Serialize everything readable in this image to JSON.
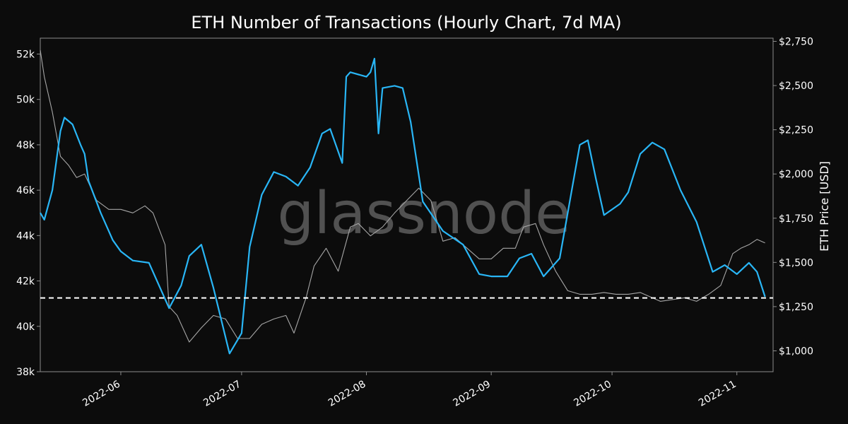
{
  "chart_data": {
    "type": "line",
    "title": "ETH Number of Transactions (Hourly Chart, 7d MA)",
    "watermark": "glassnode",
    "ylabel_right": "ETH Price [USD]",
    "x_range": [
      "2022-05-12",
      "2022-11-10"
    ],
    "x_ticks": [
      "2022-06",
      "2022-07",
      "2022-08",
      "2022-09",
      "2022-10",
      "2022-11"
    ],
    "x_tick_dates": [
      "2022-06-01",
      "2022-07-01",
      "2022-08-01",
      "2022-09-01",
      "2022-10-01",
      "2022-11-01"
    ],
    "y_left": {
      "ylim": [
        38000,
        52700
      ],
      "ticks": [
        38000,
        40000,
        42000,
        44000,
        46000,
        48000,
        50000,
        52000
      ],
      "tick_labels": [
        "38k",
        "40k",
        "42k",
        "44k",
        "46k",
        "48k",
        "50k",
        "52k"
      ]
    },
    "y_right": {
      "ylim": [
        882,
        2768
      ],
      "ticks": [
        1000,
        1250,
        1500,
        1750,
        2000,
        2250,
        2500,
        2750
      ],
      "tick_labels": [
        "$1,000",
        "$1,250",
        "$1,500",
        "$1,750",
        "$2,000",
        "$2,250",
        "$2,500",
        "$2,750"
      ]
    },
    "reference_line": {
      "axis": "left",
      "value": 41250,
      "style": "dashed",
      "color": "#ffffff"
    },
    "grid": false,
    "series": [
      {
        "axis": "left",
        "color": "#29b6f6",
        "x": [
          "2022-05-12",
          "2022-05-13",
          "2022-05-15",
          "2022-05-17",
          "2022-05-18",
          "2022-05-20",
          "2022-05-22",
          "2022-05-23",
          "2022-05-24",
          "2022-05-27",
          "2022-05-30",
          "2022-06-01",
          "2022-06-04",
          "2022-06-08",
          "2022-06-13",
          "2022-06-16",
          "2022-06-18",
          "2022-06-21",
          "2022-06-24",
          "2022-06-28",
          "2022-07-01",
          "2022-07-03",
          "2022-07-06",
          "2022-07-09",
          "2022-07-12",
          "2022-07-15",
          "2022-07-18",
          "2022-07-21",
          "2022-07-23",
          "2022-07-26",
          "2022-07-27",
          "2022-07-28",
          "2022-08-01",
          "2022-08-02",
          "2022-08-03",
          "2022-08-04",
          "2022-08-05",
          "2022-08-08",
          "2022-08-10",
          "2022-08-12",
          "2022-08-15",
          "2022-08-20",
          "2022-08-25",
          "2022-08-29",
          "2022-09-01",
          "2022-09-05",
          "2022-09-08",
          "2022-09-11",
          "2022-09-14",
          "2022-09-18",
          "2022-09-23",
          "2022-09-25",
          "2022-09-27",
          "2022-09-29",
          "2022-10-03",
          "2022-10-05",
          "2022-10-08",
          "2022-10-11",
          "2022-10-14",
          "2022-10-18",
          "2022-10-22",
          "2022-10-26",
          "2022-10-29",
          "2022-11-01",
          "2022-11-04",
          "2022-11-06",
          "2022-11-08"
        ],
        "values": [
          45000,
          44700,
          46000,
          48600,
          49200,
          48900,
          48000,
          47600,
          46400,
          45000,
          43800,
          43300,
          42900,
          42800,
          40800,
          41800,
          43100,
          43600,
          41700,
          38800,
          39700,
          43500,
          45800,
          46800,
          46600,
          46200,
          47000,
          48500,
          48700,
          47200,
          51000,
          51200,
          51000,
          51200,
          51800,
          48500,
          50500,
          50600,
          50500,
          49000,
          45500,
          44200,
          43600,
          42300,
          42200,
          42200,
          43000,
          43200,
          42200,
          43000,
          48000,
          48200,
          46500,
          44900,
          45400,
          45900,
          47600,
          48100,
          47800,
          46000,
          44600,
          42400,
          42700,
          42300,
          42800,
          42400,
          41300
        ]
      },
      {
        "axis": "right",
        "color": "#a6a6a6",
        "x": [
          "2022-05-12",
          "2022-05-13",
          "2022-05-15",
          "2022-05-17",
          "2022-05-19",
          "2022-05-21",
          "2022-05-23",
          "2022-05-26",
          "2022-05-29",
          "2022-06-01",
          "2022-06-04",
          "2022-06-07",
          "2022-06-09",
          "2022-06-12",
          "2022-06-13",
          "2022-06-15",
          "2022-06-18",
          "2022-06-21",
          "2022-06-24",
          "2022-06-27",
          "2022-06-30",
          "2022-07-03",
          "2022-07-06",
          "2022-07-09",
          "2022-07-12",
          "2022-07-14",
          "2022-07-17",
          "2022-07-19",
          "2022-07-22",
          "2022-07-25",
          "2022-07-28",
          "2022-07-30",
          "2022-08-02",
          "2022-08-05",
          "2022-08-08",
          "2022-08-11",
          "2022-08-14",
          "2022-08-17",
          "2022-08-20",
          "2022-08-23",
          "2022-08-26",
          "2022-08-29",
          "2022-09-01",
          "2022-09-04",
          "2022-09-07",
          "2022-09-09",
          "2022-09-12",
          "2022-09-14",
          "2022-09-17",
          "2022-09-20",
          "2022-09-23",
          "2022-09-26",
          "2022-09-29",
          "2022-10-02",
          "2022-10-05",
          "2022-10-08",
          "2022-10-11",
          "2022-10-13",
          "2022-10-16",
          "2022-10-19",
          "2022-10-22",
          "2022-10-25",
          "2022-10-28",
          "2022-10-31",
          "2022-11-02",
          "2022-11-04",
          "2022-11-06",
          "2022-11-08"
        ],
        "values": [
          2700,
          2550,
          2350,
          2100,
          2050,
          1980,
          2000,
          1850,
          1800,
          1800,
          1780,
          1820,
          1780,
          1600,
          1250,
          1200,
          1050,
          1130,
          1200,
          1180,
          1070,
          1070,
          1150,
          1180,
          1200,
          1100,
          1300,
          1480,
          1580,
          1450,
          1700,
          1720,
          1650,
          1700,
          1780,
          1850,
          1920,
          1850,
          1620,
          1640,
          1580,
          1520,
          1520,
          1580,
          1580,
          1700,
          1720,
          1600,
          1450,
          1340,
          1320,
          1320,
          1330,
          1320,
          1320,
          1330,
          1300,
          1280,
          1290,
          1300,
          1280,
          1320,
          1370,
          1550,
          1580,
          1600,
          1630,
          1610
        ]
      }
    ]
  }
}
